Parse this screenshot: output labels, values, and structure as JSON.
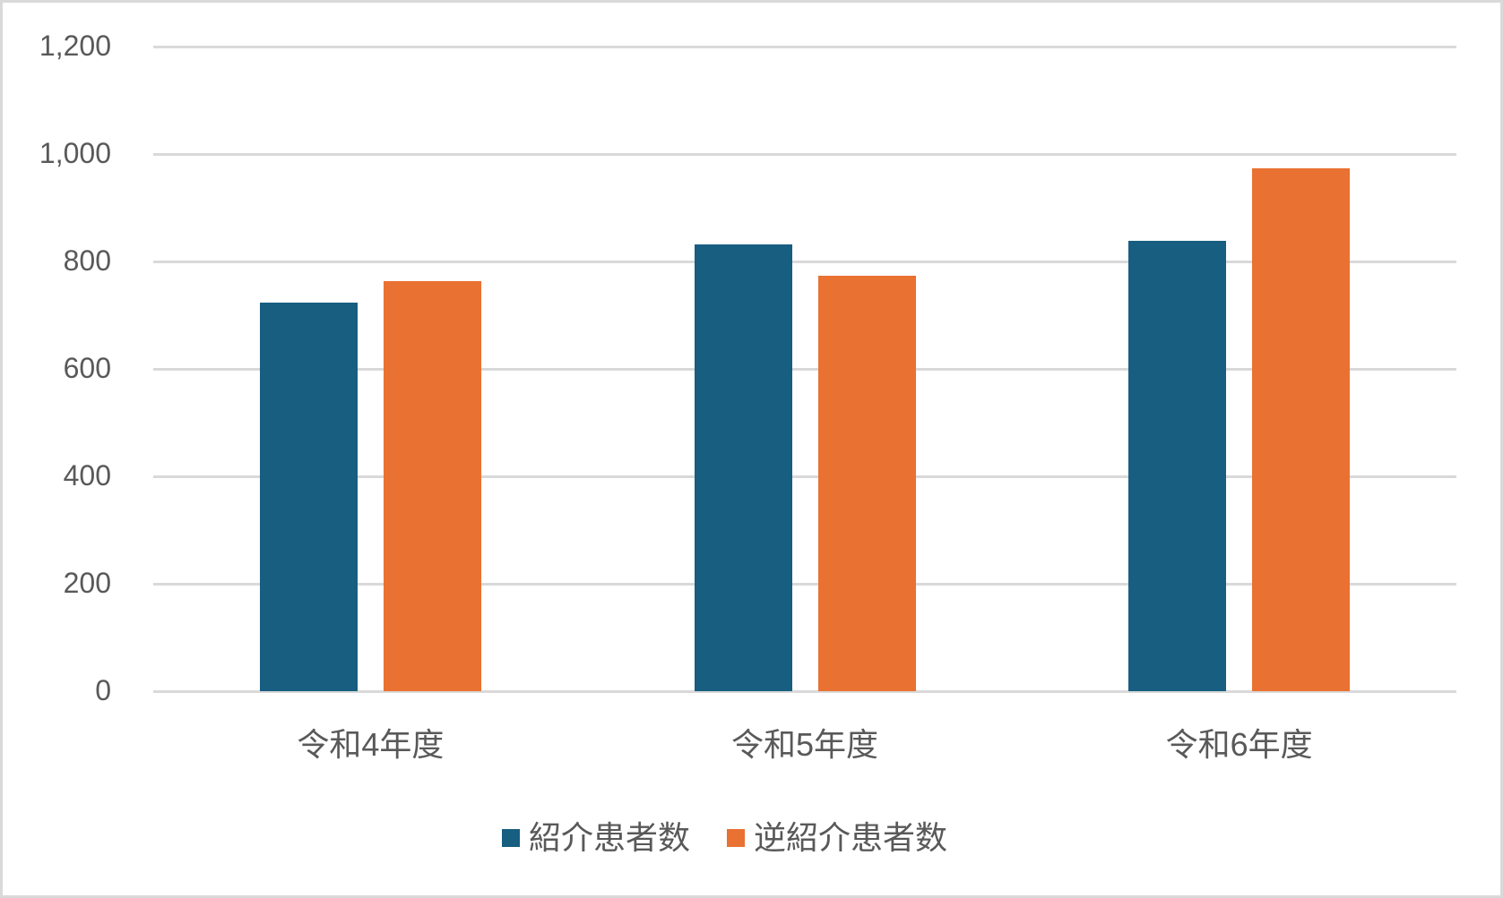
{
  "chart_data": {
    "type": "bar",
    "title": "",
    "xlabel": "",
    "ylabel": "",
    "categories": [
      "令和4年度",
      "令和5年度",
      "令和6年度"
    ],
    "series": [
      {
        "name": "紹介患者数",
        "color": "#175E81",
        "values": [
          723,
          831,
          839
        ]
      },
      {
        "name": "逆紹介患者数",
        "color": "#E97132",
        "values": [
          763,
          773,
          973
        ]
      }
    ],
    "ylim": [
      0,
      1200
    ],
    "yticks": [
      0,
      200,
      400,
      600,
      800,
      1000,
      1200
    ],
    "ytick_labels": [
      "0",
      "200",
      "400",
      "600",
      "800",
      "1,000",
      "1,200"
    ],
    "grid": true,
    "legend_position": "bottom"
  },
  "legend": {
    "items": [
      {
        "label": "紹介患者数",
        "color": "#175E81"
      },
      {
        "label": "逆紹介患者数",
        "color": "#E97132"
      }
    ]
  }
}
